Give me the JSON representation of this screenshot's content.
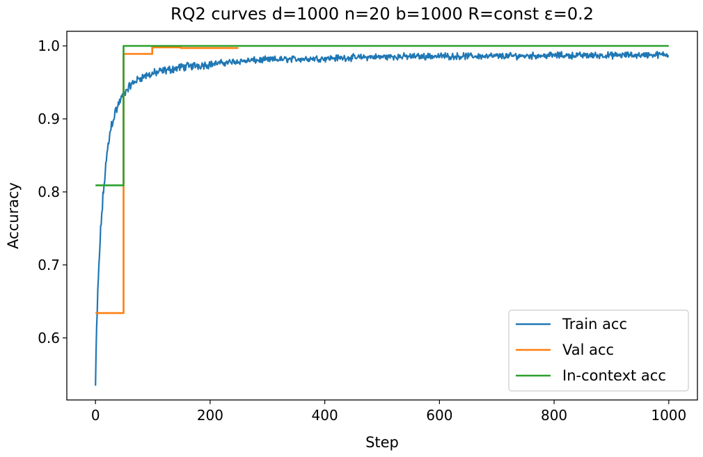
{
  "chart_data": {
    "type": "line",
    "title": "RQ2 curves d=1000 n=20 b=1000 R=const ε=0.2",
    "xlabel": "Step",
    "ylabel": "Accuracy",
    "xlim": [
      -50,
      1050
    ],
    "ylim": [
      0.515,
      1.02
    ],
    "xticks": [
      "0",
      "200",
      "400",
      "600",
      "800",
      "1000"
    ],
    "xtick_values": [
      0,
      200,
      400,
      600,
      800,
      1000
    ],
    "yticks": [
      "0.6",
      "0.7",
      "0.8",
      "0.9",
      "1.0"
    ],
    "ytick_values": [
      0.6,
      0.7,
      0.8,
      0.9,
      1.0
    ],
    "grid": false,
    "legend_position": "lower-right",
    "series": [
      {
        "name": "Train acc",
        "color": "#1f77b4",
        "style": "noisy",
        "x": [
          0,
          2,
          4,
          6,
          8,
          10,
          13,
          16,
          20,
          25,
          30,
          35,
          40,
          45,
          50,
          60,
          70,
          80,
          100,
          120,
          150,
          200,
          250,
          300,
          400,
          500,
          600,
          700,
          800,
          900,
          1000
        ],
        "y": [
          0.535,
          0.61,
          0.66,
          0.7,
          0.73,
          0.76,
          0.79,
          0.82,
          0.85,
          0.88,
          0.9,
          0.91,
          0.92,
          0.928,
          0.935,
          0.945,
          0.952,
          0.957,
          0.962,
          0.966,
          0.971,
          0.975,
          0.979,
          0.981,
          0.983,
          0.985,
          0.986,
          0.986,
          0.987,
          0.987,
          0.988
        ]
      },
      {
        "name": "Val acc",
        "color": "#ff7f0e",
        "style": "step",
        "x": [
          0,
          49,
          49,
          99,
          99,
          149,
          149,
          249
        ],
        "y": [
          0.634,
          0.634,
          0.989,
          0.989,
          0.998,
          0.998,
          0.997,
          0.997
        ]
      },
      {
        "name": "In-context acc",
        "color": "#2ca02c",
        "style": "step",
        "x": [
          0,
          49,
          49,
          1000
        ],
        "y": [
          0.809,
          0.809,
          1.0,
          1.0
        ]
      }
    ]
  }
}
